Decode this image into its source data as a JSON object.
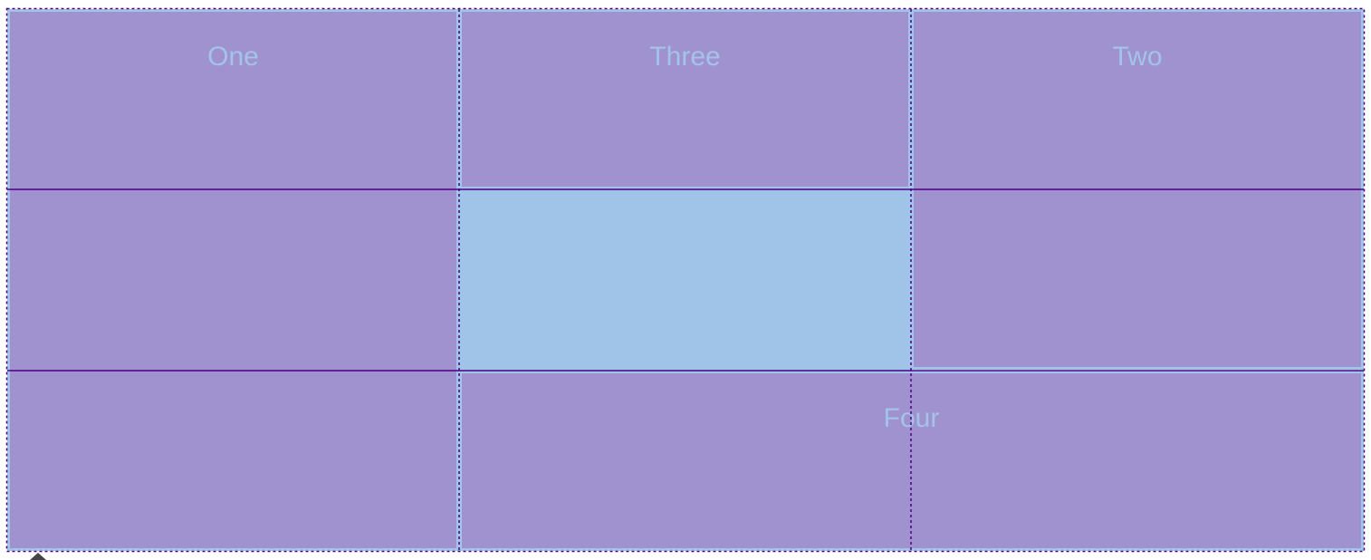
{
  "grid": {
    "items": {
      "one": {
        "label": "One"
      },
      "two": {
        "label": "Two"
      },
      "three": {
        "label": "Three"
      },
      "four": {
        "label": "Four"
      }
    }
  },
  "colors": {
    "item_background": "#a091cf",
    "item_border_and_text": "#a3c4e8",
    "grid_lines": "#4b0082",
    "empty_cell": "#a0c4e8"
  }
}
